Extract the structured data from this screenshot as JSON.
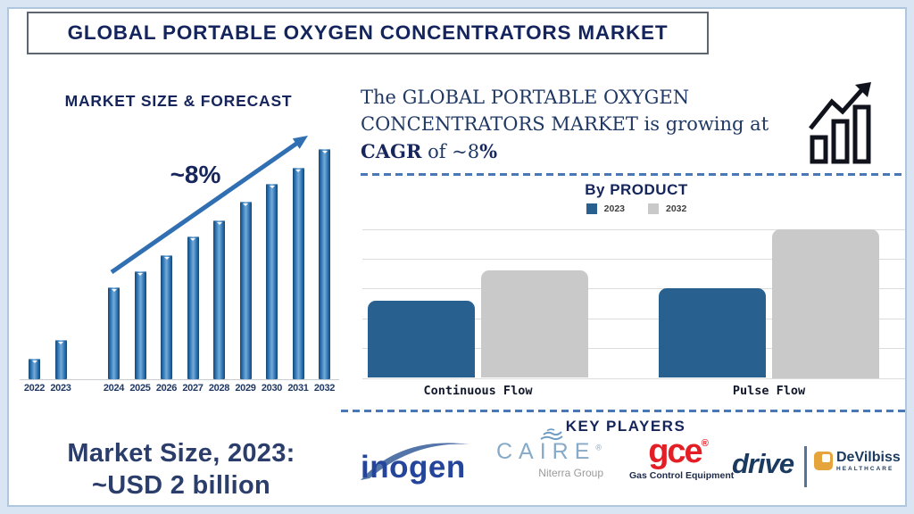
{
  "page": {
    "title": "GLOBAL PORTABLE OXYGEN CONCENTRATORS MARKET"
  },
  "forecast": {
    "heading": "MARKET SIZE & FORECAST",
    "cagr_label": "~8%"
  },
  "growth_note": {
    "line1": "The GLOBAL PORTABLE OXYGEN",
    "line2": "CONCENTRATORS MARKET is growing at",
    "line3_bold1": "CAGR",
    "line3_mid": " of ~8",
    "line3_bold2": "%"
  },
  "by_product": {
    "heading": "By PRODUCT"
  },
  "market_size_note": {
    "line1": "Market Size, 2023:",
    "line2": "~USD 2 billion"
  },
  "key_players": {
    "heading": "KEY PLAYERS",
    "logos": [
      {
        "name": "Inogen",
        "wordmark": "inogen",
        "color": "#24459a"
      },
      {
        "name": "CAIRE",
        "wordmark": "CAIRE",
        "reg": "®",
        "subtext": "Niterra Group",
        "color": "#87aac8"
      },
      {
        "name": "GCE",
        "wordmark": "gce",
        "reg": "®",
        "subtext": "Gas Control Equipment",
        "color": "#e31e25"
      },
      {
        "name": "Drive DeVilbiss Healthcare",
        "wordmark": "drive",
        "brand2": "DeVilbiss",
        "subtext2": "HEALTHCARE",
        "color": "#1b3a5f",
        "icon_color": "#e6a43c"
      }
    ]
  },
  "chart_data": [
    {
      "id": "market_size_forecast",
      "type": "bar",
      "title": "MARKET SIZE & FORECAST",
      "categories": [
        "2022",
        "2023",
        "2024",
        "2025",
        "2026",
        "2027",
        "2028",
        "2029",
        "2030",
        "2031",
        "2032"
      ],
      "values": [
        9,
        17,
        40,
        47,
        54,
        62,
        69,
        77,
        85,
        92,
        100
      ],
      "value_note": "no numeric axis shown; values are relative bar heights indexed to 2032 = 100",
      "annotation": "~8% CAGR trend arrow",
      "bar_color": "#2e74b5",
      "grid": false,
      "ylim": [
        0,
        100
      ]
    },
    {
      "id": "by_product",
      "type": "bar",
      "title": "By PRODUCT",
      "categories": [
        "Continuous Flow",
        "Pulse Flow"
      ],
      "series": [
        {
          "name": "2023",
          "color": "#28618f",
          "values": [
            2.6,
            3.0
          ]
        },
        {
          "name": "2032",
          "color": "#c9c9c9",
          "values": [
            3.6,
            5.0
          ]
        }
      ],
      "value_note": "no numeric axis shown; values estimated in gridline units (5 gridline intervals total)",
      "grid": true,
      "legend_position": "top",
      "ylim": [
        0,
        5
      ]
    }
  ]
}
